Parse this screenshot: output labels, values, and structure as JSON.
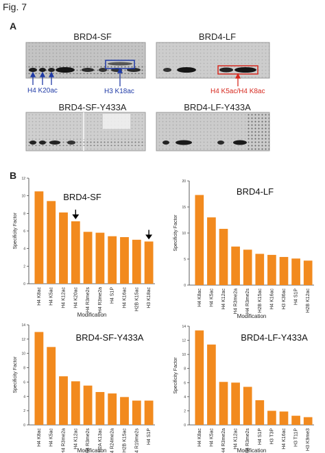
{
  "figure_label": "Fig. 7",
  "panel_a": {
    "letter": "A",
    "blots": [
      {
        "title": "BRD4-SF"
      },
      {
        "title": "BRD4-LF"
      },
      {
        "title": "BRD4-SF-Y433A"
      },
      {
        "title": "BRD4-LF-Y433A"
      }
    ],
    "annotations": {
      "h4k20ac": "H4 K20ac",
      "h3k18ac": "H3 K18ac",
      "h4k5ac_k8ac": "H4 K5ac/H4 K8ac"
    },
    "colors": {
      "blue": "#1f3aa6",
      "red": "#d6281e"
    }
  },
  "panel_b": {
    "letter": "B"
  },
  "chart_data": [
    {
      "type": "bar",
      "title": "BRD4-SF",
      "ylabel": "Specificity Factor",
      "xlabel": "Modification",
      "ylim": [
        0,
        12
      ],
      "yticks": [
        0,
        2,
        4,
        6,
        8,
        10,
        12
      ],
      "categories": [
        "H4 K8ac",
        "H4 K5ac",
        "H4 K12ac",
        "H4 K20ac",
        "H4 R3me2s",
        "H4 R3me2a",
        "H4 S1P",
        "H4 K16ac",
        "H2B K15ac",
        "H3 K18ac"
      ],
      "values": [
        10.5,
        9.4,
        8.1,
        7.1,
        5.9,
        5.8,
        5.4,
        5.3,
        5.0,
        4.8
      ],
      "arrows_on": [
        "H4 K20ac",
        "H3 K18ac"
      ],
      "color": "#f28a1e"
    },
    {
      "type": "bar",
      "title": "BRD4-LF",
      "ylabel": "Specificity Factor",
      "xlabel": "Modification",
      "ylim": [
        0,
        20
      ],
      "yticks": [
        0,
        5,
        10,
        15,
        20
      ],
      "categories": [
        "H4 K8ac",
        "H4 K5ac",
        "H4 K12ac",
        "H4 R3me2a",
        "H4 R3me2s",
        "H2B K15ac",
        "H4 K16ac",
        "H3 K36ac",
        "H4 S1P",
        "H2B K12ac"
      ],
      "values": [
        17.3,
        13.0,
        10.8,
        7.4,
        6.8,
        6.0,
        5.8,
        5.4,
        5.1,
        4.7
      ],
      "color": "#f28a1e"
    },
    {
      "type": "bar",
      "title": "BRD4-SF-Y433A",
      "ylabel": "Specificity Factor",
      "xlabel": "Modification",
      "ylim": [
        0,
        14
      ],
      "yticks": [
        0,
        2,
        4,
        6,
        8,
        10,
        12,
        14
      ],
      "categories": [
        "H4 K8ac",
        "H4 K5ac",
        "H4 R3me2a",
        "H4 K12ac",
        "H4 R3me2s",
        "H2A K13ac",
        "H4 R24me2a",
        "H2B K15ac",
        "H4 R19me2s",
        "H4 S1P"
      ],
      "values": [
        13.0,
        10.9,
        6.8,
        6.1,
        5.5,
        4.6,
        4.4,
        3.9,
        3.4,
        3.4
      ],
      "color": "#f28a1e"
    },
    {
      "type": "bar",
      "title": "BRD4-LF-Y433A",
      "ylabel": "Specificity Factor",
      "xlabel": "Modification",
      "ylim": [
        0,
        14
      ],
      "yticks": [
        0,
        2,
        4,
        6,
        8,
        10,
        12,
        14
      ],
      "categories": [
        "H4 K8ac",
        "H4 K5ac",
        "H4 R3me2a",
        "H4 K12ac",
        "H4 R3me2s",
        "H4 S1P",
        "H3 T3P",
        "H4 K16ac",
        "H3 T11P",
        "H3 K9me3"
      ],
      "values": [
        13.4,
        11.4,
        6.1,
        6.0,
        5.4,
        3.5,
        2.0,
        1.9,
        1.3,
        1.1
      ],
      "color": "#f28a1e"
    }
  ]
}
